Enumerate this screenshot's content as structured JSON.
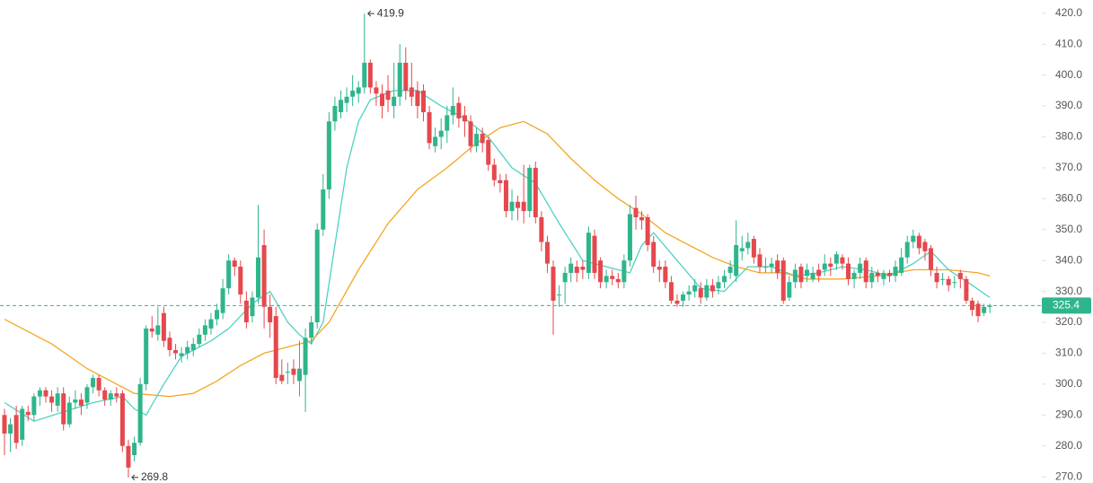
{
  "chart_data": {
    "type": "candlestick",
    "up_color": "#2fb58c",
    "down_color": "#e5484d",
    "candles": [
      [
        290,
        292,
        277,
        284
      ],
      [
        284,
        289,
        278,
        287
      ],
      [
        290,
        293,
        279,
        281
      ],
      [
        282,
        293,
        280,
        292
      ],
      [
        291,
        293,
        288,
        290
      ],
      [
        290,
        297,
        288,
        296
      ],
      [
        296,
        299,
        293,
        298
      ],
      [
        298,
        299,
        294,
        296
      ],
      [
        296,
        298,
        291,
        294
      ],
      [
        293,
        299,
        291,
        297
      ],
      [
        297,
        299,
        285,
        287
      ],
      [
        287,
        296,
        286,
        294
      ],
      [
        294,
        298,
        292,
        295
      ],
      [
        295,
        297,
        290,
        293
      ],
      [
        294,
        300,
        292,
        299
      ],
      [
        299,
        303,
        297,
        302
      ],
      [
        302,
        303,
        296,
        298
      ],
      [
        298,
        299,
        293,
        295
      ],
      [
        295,
        298,
        293,
        297
      ],
      [
        297,
        299,
        294,
        296
      ],
      [
        297,
        298,
        278,
        280
      ],
      [
        280,
        282,
        269.8,
        273
      ],
      [
        277,
        283,
        275,
        281
      ],
      [
        281,
        302,
        280,
        300
      ],
      [
        300,
        319,
        298,
        318
      ],
      [
        318,
        322,
        315,
        317
      ],
      [
        316,
        325,
        314,
        319
      ],
      [
        323,
        325,
        312,
        314
      ],
      [
        315,
        317,
        309,
        311
      ],
      [
        311,
        313,
        308,
        310
      ],
      [
        309,
        312,
        307,
        310
      ],
      [
        310,
        314,
        308,
        312
      ],
      [
        311,
        315,
        309,
        313
      ],
      [
        313,
        318,
        312,
        316
      ],
      [
        316,
        321,
        314,
        319
      ],
      [
        318,
        323,
        316,
        321
      ],
      [
        321,
        326,
        319,
        324
      ],
      [
        323,
        334,
        321,
        331
      ],
      [
        331,
        342,
        329,
        340
      ],
      [
        340,
        341,
        335,
        338
      ],
      [
        338,
        340,
        326,
        329
      ],
      [
        327,
        330,
        318,
        320
      ],
      [
        322,
        330,
        320,
        328
      ],
      [
        328,
        358,
        326,
        341
      ],
      [
        345,
        350,
        318,
        325
      ],
      [
        325,
        329,
        315,
        320
      ],
      [
        322,
        325,
        300,
        302
      ],
      [
        303,
        308,
        300,
        301
      ],
      [
        304,
        307,
        300,
        304
      ],
      [
        305,
        308,
        300,
        303
      ],
      [
        301,
        314,
        296,
        305
      ],
      [
        303,
        318,
        291,
        315
      ],
      [
        315,
        322,
        313,
        320
      ],
      [
        320,
        352,
        318,
        350
      ],
      [
        350,
        368,
        348,
        363
      ],
      [
        363,
        388,
        360,
        385
      ],
      [
        385,
        393,
        382,
        390
      ],
      [
        388,
        395,
        386,
        392
      ],
      [
        391,
        396,
        388,
        393
      ],
      [
        393,
        400,
        390,
        395
      ],
      [
        394,
        398,
        391,
        396
      ],
      [
        396,
        419.9,
        394,
        404
      ],
      [
        404,
        405,
        394,
        396
      ],
      [
        396,
        398,
        390,
        394
      ],
      [
        394,
        397,
        386,
        390
      ],
      [
        395,
        400,
        388,
        392
      ],
      [
        390,
        404,
        386,
        393
      ],
      [
        393,
        410,
        390,
        404
      ],
      [
        404,
        409,
        392,
        395
      ],
      [
        396,
        404,
        390,
        393
      ],
      [
        395,
        398,
        386,
        390
      ],
      [
        395,
        397,
        385,
        388
      ],
      [
        388,
        390,
        376,
        378
      ],
      [
        377,
        383,
        375,
        380
      ],
      [
        380,
        386,
        376,
        382
      ],
      [
        382,
        390,
        378,
        387
      ],
      [
        387,
        396,
        384,
        390
      ],
      [
        391,
        393,
        383,
        386
      ],
      [
        387,
        390,
        380,
        385
      ],
      [
        385,
        387,
        375,
        377
      ],
      [
        377,
        383,
        375,
        381
      ],
      [
        381,
        383,
        375,
        378
      ],
      [
        379,
        380,
        369,
        371
      ],
      [
        371,
        373,
        364,
        366
      ],
      [
        366,
        368,
        362,
        365
      ],
      [
        366,
        368,
        354,
        356
      ],
      [
        356,
        363,
        353,
        359
      ],
      [
        359,
        361,
        353,
        357
      ],
      [
        359,
        371,
        352,
        356
      ],
      [
        356,
        371,
        354,
        370
      ],
      [
        370,
        372,
        352,
        354
      ],
      [
        354,
        356,
        343,
        346
      ],
      [
        346,
        348,
        336,
        339
      ],
      [
        338,
        340,
        316,
        327
      ],
      [
        329,
        332,
        325,
        329
      ],
      [
        333,
        338,
        326,
        336
      ],
      [
        336,
        341,
        333,
        339
      ],
      [
        338,
        340,
        333,
        336
      ],
      [
        338,
        340,
        334,
        337
      ],
      [
        336,
        351,
        334,
        349
      ],
      [
        348,
        350,
        334,
        336
      ],
      [
        340,
        341,
        331,
        333
      ],
      [
        333,
        337,
        331,
        335
      ],
      [
        335,
        337,
        332,
        334
      ],
      [
        334,
        336,
        331,
        333
      ],
      [
        333,
        342,
        331,
        340
      ],
      [
        340,
        358,
        338,
        355
      ],
      [
        357,
        361,
        350,
        354
      ],
      [
        354,
        356,
        350,
        353
      ],
      [
        354,
        355,
        343,
        345
      ],
      [
        346,
        348,
        336,
        338
      ],
      [
        338,
        340,
        333,
        337
      ],
      [
        338,
        340,
        331,
        333
      ],
      [
        333,
        335,
        326,
        327
      ],
      [
        327,
        329,
        325,
        326
      ],
      [
        327,
        330,
        325,
        329
      ],
      [
        329,
        332,
        327,
        330
      ],
      [
        330,
        334,
        328,
        332
      ],
      [
        331,
        333,
        326,
        328
      ],
      [
        328,
        334,
        327,
        332
      ],
      [
        332,
        334,
        328,
        330
      ],
      [
        331,
        335,
        329,
        333
      ],
      [
        333,
        337,
        331,
        335
      ],
      [
        336,
        340,
        334,
        338
      ],
      [
        335,
        353,
        333,
        345
      ],
      [
        343,
        348,
        340,
        344
      ],
      [
        344,
        349,
        342,
        346
      ],
      [
        347,
        348,
        339,
        341
      ],
      [
        342,
        344,
        336,
        338
      ],
      [
        338,
        341,
        336,
        338
      ],
      [
        338,
        341,
        336,
        339
      ],
      [
        340,
        342,
        334,
        336
      ],
      [
        340,
        341,
        326,
        327
      ],
      [
        328,
        335,
        327,
        333
      ],
      [
        333,
        339,
        331,
        337
      ],
      [
        338,
        339,
        331,
        333
      ],
      [
        335,
        339,
        333,
        337
      ],
      [
        334,
        338,
        333,
        336
      ],
      [
        337,
        339,
        333,
        335
      ],
      [
        337,
        342,
        335,
        339
      ],
      [
        339,
        341,
        335,
        338
      ],
      [
        339,
        343,
        337,
        342
      ],
      [
        341,
        342,
        337,
        339
      ],
      [
        339,
        341,
        332,
        334
      ],
      [
        334,
        337,
        331,
        336
      ],
      [
        336,
        341,
        334,
        339
      ],
      [
        340,
        341,
        331,
        333
      ],
      [
        333,
        338,
        331,
        336
      ],
      [
        336,
        337,
        333,
        335
      ],
      [
        334,
        337,
        332,
        336
      ],
      [
        336,
        337,
        333,
        335
      ],
      [
        335,
        340,
        333,
        338
      ],
      [
        336,
        344,
        335,
        341
      ],
      [
        341,
        348,
        339,
        346
      ],
      [
        346,
        350,
        344,
        348
      ],
      [
        348,
        349,
        342,
        344
      ],
      [
        346,
        347,
        340,
        343
      ],
      [
        344,
        345,
        335,
        337
      ],
      [
        336,
        338,
        331,
        333
      ],
      [
        334,
        336,
        332,
        334
      ],
      [
        334,
        335,
        330,
        332
      ],
      [
        333,
        335,
        331,
        333
      ],
      [
        336,
        337,
        331,
        334
      ],
      [
        334,
        335,
        326,
        327
      ],
      [
        327,
        328,
        322,
        324
      ],
      [
        326,
        327,
        320,
        322
      ],
      [
        323,
        326,
        322,
        325
      ],
      [
        325,
        326,
        323,
        325.4
      ]
    ],
    "lines": [
      {
        "color": "#4fd1c1",
        "x": [
          0,
          5,
          10,
          15,
          20,
          22,
          24,
          27,
          30,
          35,
          38,
          42,
          45,
          48,
          50,
          52,
          54,
          56,
          58,
          60,
          62,
          66,
          70,
          74,
          78,
          82,
          86,
          90,
          94,
          98,
          102,
          106,
          108,
          110,
          114,
          118,
          122,
          126,
          130,
          134,
          138,
          142,
          146,
          150,
          154,
          157,
          160,
          164,
          167
        ],
        "values": [
          294,
          288,
          291,
          294,
          296,
          292,
          290,
          300,
          309,
          314,
          318,
          326,
          330,
          320,
          316,
          313,
          320,
          345,
          370,
          385,
          392,
          395,
          395,
          390,
          386,
          380,
          370,
          365,
          352,
          340,
          338,
          336,
          345,
          349,
          340,
          331,
          330,
          338,
          338,
          335,
          336,
          338,
          337,
          335,
          339,
          343,
          337,
          332,
          328
        ]
      },
      {
        "color": "#f5a623",
        "x": [
          0,
          8,
          14,
          18,
          22,
          28,
          32,
          36,
          40,
          44,
          48,
          52,
          55,
          60,
          65,
          70,
          75,
          80,
          84,
          88,
          92,
          96,
          100,
          104,
          108,
          112,
          116,
          120,
          124,
          128,
          132,
          136,
          142,
          148,
          154,
          160,
          165,
          167
        ],
        "values": [
          321,
          313,
          305,
          301,
          297,
          296,
          297,
          301,
          306,
          310,
          312,
          314,
          320,
          337,
          352,
          363,
          370,
          378,
          383,
          385,
          381,
          373,
          366,
          360,
          355,
          349,
          345,
          341,
          338,
          336,
          336,
          334,
          334,
          335,
          337,
          337,
          336,
          335
        ]
      }
    ],
    "last_price": 325.4,
    "last_price_color": "#2fb58c",
    "annotations": [
      "419.9",
      "269.8"
    ],
    "ylim": [
      268,
      424.3
    ],
    "yticks": [
      {
        "value": 270,
        "label": "270.0"
      },
      {
        "value": 280,
        "label": "280.0"
      },
      {
        "value": 290,
        "label": "290.0"
      },
      {
        "value": 300,
        "label": "300.0"
      },
      {
        "value": 310,
        "label": "310.0"
      },
      {
        "value": 320,
        "label": "320.0"
      },
      {
        "value": 330,
        "label": "330.0"
      },
      {
        "value": 340,
        "label": "340.0"
      },
      {
        "value": 350,
        "label": "350.0"
      },
      {
        "value": 360,
        "label": "360.0"
      },
      {
        "value": 370,
        "label": "370.0"
      },
      {
        "value": 380,
        "label": "380.0"
      },
      {
        "value": 390,
        "label": "390.0"
      },
      {
        "value": 400,
        "label": "400.0"
      },
      {
        "value": 410,
        "label": "410.0"
      },
      {
        "value": 420,
        "label": "420.0"
      }
    ]
  }
}
